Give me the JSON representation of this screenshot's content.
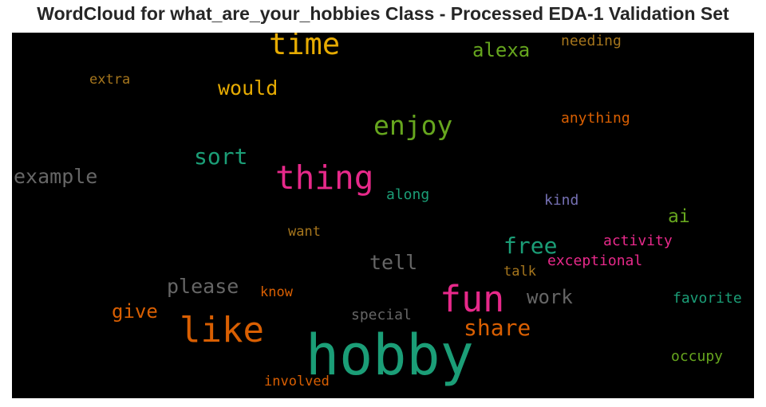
{
  "chart_data": {
    "type": "wordcloud",
    "title": "WordCloud for what_are_your_hobbies Class - Processed EDA-1 Validation Set",
    "background": "#000000",
    "words": [
      {
        "text": "hobby",
        "weight": 1.0,
        "color": "#1b9e77"
      },
      {
        "text": "fun",
        "weight": 0.72,
        "color": "#e7298a"
      },
      {
        "text": "like",
        "weight": 0.7,
        "color": "#d95f02"
      },
      {
        "text": "thing",
        "weight": 0.66,
        "color": "#e7298a"
      },
      {
        "text": "time",
        "weight": 0.6,
        "color": "#e6ab02"
      },
      {
        "text": "enjoy",
        "weight": 0.55,
        "color": "#66a61e"
      },
      {
        "text": "sort",
        "weight": 0.47,
        "color": "#1b9e77"
      },
      {
        "text": "share",
        "weight": 0.46,
        "color": "#d95f02"
      },
      {
        "text": "free",
        "weight": 0.46,
        "color": "#1b9e77"
      },
      {
        "text": "example",
        "weight": 0.42,
        "color": "#666666"
      },
      {
        "text": "please",
        "weight": 0.42,
        "color": "#666666"
      },
      {
        "text": "would",
        "weight": 0.42,
        "color": "#e6ab02"
      },
      {
        "text": "tell",
        "weight": 0.42,
        "color": "#666666"
      },
      {
        "text": "alexa",
        "weight": 0.4,
        "color": "#66a61e"
      },
      {
        "text": "work",
        "weight": 0.39,
        "color": "#666666"
      },
      {
        "text": "give",
        "weight": 0.39,
        "color": "#d95f02"
      },
      {
        "text": "ai",
        "weight": 0.38,
        "color": "#66a61e"
      },
      {
        "text": "anything",
        "weight": 0.3,
        "color": "#d95f02"
      },
      {
        "text": "activity",
        "weight": 0.3,
        "color": "#e7298a"
      },
      {
        "text": "exceptional",
        "weight": 0.3,
        "color": "#e7298a"
      },
      {
        "text": "favorite",
        "weight": 0.3,
        "color": "#1b9e77"
      },
      {
        "text": "occupy",
        "weight": 0.3,
        "color": "#66a61e"
      },
      {
        "text": "along",
        "weight": 0.29,
        "color": "#1b9e77"
      },
      {
        "text": "needing",
        "weight": 0.29,
        "color": "#a6761d"
      },
      {
        "text": "kind",
        "weight": 0.29,
        "color": "#7570b3"
      },
      {
        "text": "special",
        "weight": 0.29,
        "color": "#666666"
      },
      {
        "text": "involved",
        "weight": 0.29,
        "color": "#d95f02"
      },
      {
        "text": "extra",
        "weight": 0.28,
        "color": "#a6761d"
      },
      {
        "text": "want",
        "weight": 0.28,
        "color": "#a6761d"
      },
      {
        "text": "know",
        "weight": 0.28,
        "color": "#d95f02"
      },
      {
        "text": "talk",
        "weight": 0.28,
        "color": "#a6761d"
      }
    ]
  }
}
